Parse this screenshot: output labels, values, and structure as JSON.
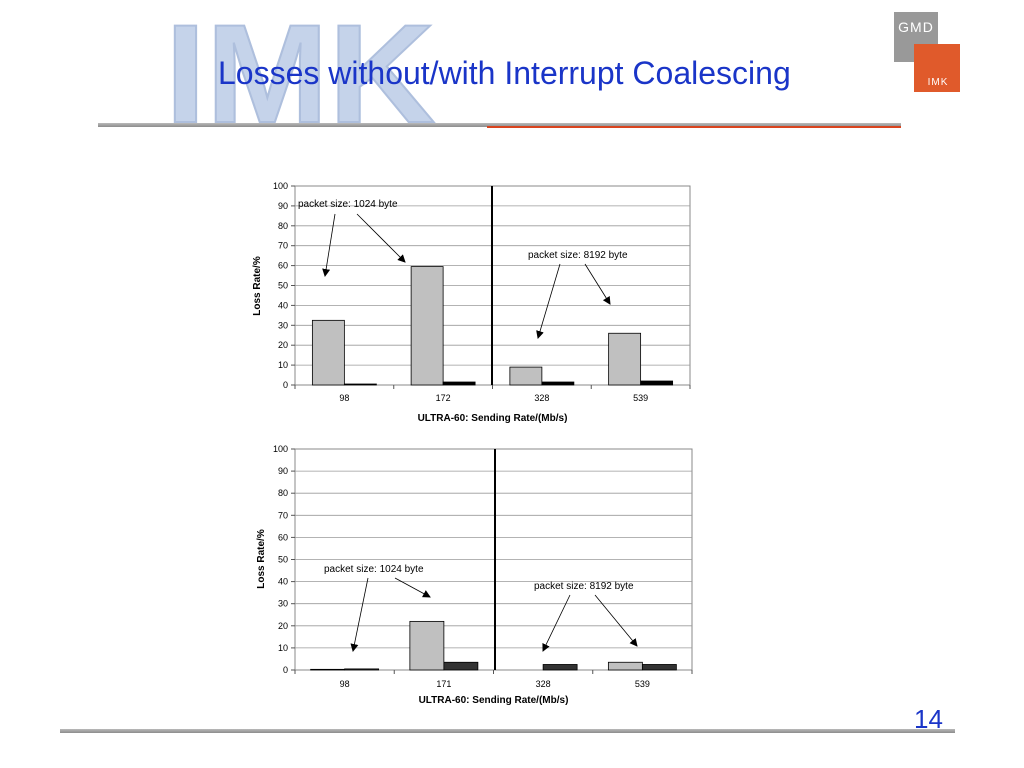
{
  "slide": {
    "title": "Losses without/with Interrupt Coalescing",
    "page_number": "14"
  },
  "logos": {
    "watermark_text": "IMK",
    "gmd_top": "GMD",
    "gmd_bottom": "IMK",
    "colors": {
      "watermark": "#c5d3ea",
      "gmd_gray": "#999999",
      "gmd_red": "#e05a2b",
      "title": "#1a35c8"
    }
  },
  "chart_data": [
    {
      "type": "bar",
      "title": "",
      "xlabel": "ULTRA-60: Sending Rate/(Mb/s)",
      "ylabel": "Loss Rate/%",
      "categories": [
        "98",
        "172",
        "328",
        "539"
      ],
      "ylim": [
        0,
        100
      ],
      "yticks": [
        "0",
        "10",
        "20",
        "30",
        "40",
        "50",
        "60",
        "70",
        "80",
        "90",
        "100"
      ],
      "grid": true,
      "series": [
        {
          "values": [
            32.5,
            59.5,
            9,
            26
          ],
          "color": "#c0c0c0"
        },
        {
          "values": [
            0.5,
            1.5,
            1.5,
            2
          ],
          "color": "#000000"
        }
      ],
      "annotations": [
        {
          "text": "packet size:  1024 byte",
          "targets": [
            "98",
            "172"
          ]
        },
        {
          "text": "packet size: 8192 byte",
          "targets": [
            "328",
            "539"
          ]
        }
      ]
    },
    {
      "type": "bar",
      "title": "",
      "xlabel": "ULTRA-60: Sending Rate/(Mb/s)",
      "ylabel": "Loss Rate/%",
      "categories": [
        "98",
        "171",
        "328",
        "539"
      ],
      "ylim": [
        0,
        100
      ],
      "yticks": [
        "0",
        "10",
        "20",
        "30",
        "40",
        "50",
        "60",
        "70",
        "80",
        "90",
        "100"
      ],
      "grid": true,
      "series": [
        {
          "values": [
            0.3,
            22,
            0,
            3.5
          ],
          "color": "#c0c0c0"
        },
        {
          "values": [
            0.5,
            3.5,
            2.5,
            2.5
          ],
          "color": "#333333"
        }
      ],
      "annotations": [
        {
          "text": "packet size: 1024 byte",
          "targets": [
            "98",
            "171"
          ]
        },
        {
          "text": "packet size: 8192 byte",
          "targets": [
            "328",
            "539"
          ]
        }
      ]
    }
  ]
}
